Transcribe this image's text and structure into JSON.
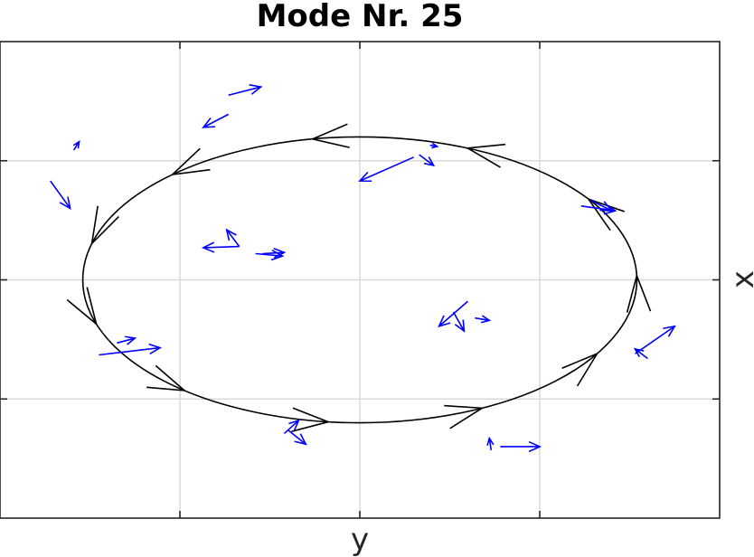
{
  "chart_data": {
    "type": "quiver",
    "title": "Mode Nr. 25",
    "xlabel": "y",
    "ylabel": "x",
    "xlim": [
      0,
      4
    ],
    "ylim": [
      0,
      4
    ],
    "grid": true,
    "colors": {
      "flow": "#0000ff",
      "orbit": "#000000",
      "grid": "#d9d9d9",
      "axes": "#262626"
    },
    "orbit": {
      "type": "ellipse",
      "center": [
        2,
        2
      ],
      "radius_x": 1.54,
      "radius_y": 1.2,
      "arrow_count": 11
    },
    "vectors": [
      [
        1.27,
        3.39,
        -0.14,
        -0.11
      ],
      [
        1.27,
        3.55,
        0.18,
        0.07
      ],
      [
        0.41,
        3.09,
        0.03,
        0.07
      ],
      [
        0.28,
        2.83,
        0.11,
        -0.23
      ],
      [
        1.33,
        2.28,
        -0.2,
        -0.01
      ],
      [
        1.33,
        2.28,
        -0.07,
        0.14
      ],
      [
        1.46,
        2.22,
        0.12,
        0.01
      ],
      [
        1.42,
        2.22,
        0.15,
        -0.02
      ],
      [
        2.3,
        3.03,
        -0.3,
        -0.2
      ],
      [
        2.33,
        3.05,
        0.08,
        -0.09
      ],
      [
        2.39,
        3.13,
        0.04,
        -0.01
      ],
      [
        3.23,
        2.62,
        0.19,
        -0.04
      ],
      [
        3.28,
        2.67,
        0.12,
        -0.09
      ],
      [
        2.6,
        1.82,
        -0.16,
        -0.21
      ],
      [
        2.52,
        1.73,
        0.06,
        -0.16
      ],
      [
        2.64,
        1.68,
        0.08,
        -0.02
      ],
      [
        3.53,
        1.38,
        0.22,
        0.23
      ],
      [
        3.6,
        1.34,
        -0.07,
        0.08
      ],
      [
        0.55,
        1.37,
        0.34,
        0.06
      ],
      [
        0.65,
        1.47,
        0.1,
        0.04
      ],
      [
        1.58,
        0.71,
        0.08,
        0.11
      ],
      [
        1.6,
        0.74,
        0.1,
        -0.12
      ],
      [
        2.73,
        0.57,
        -0.01,
        0.1
      ],
      [
        2.78,
        0.6,
        0.22,
        0.0
      ]
    ]
  }
}
